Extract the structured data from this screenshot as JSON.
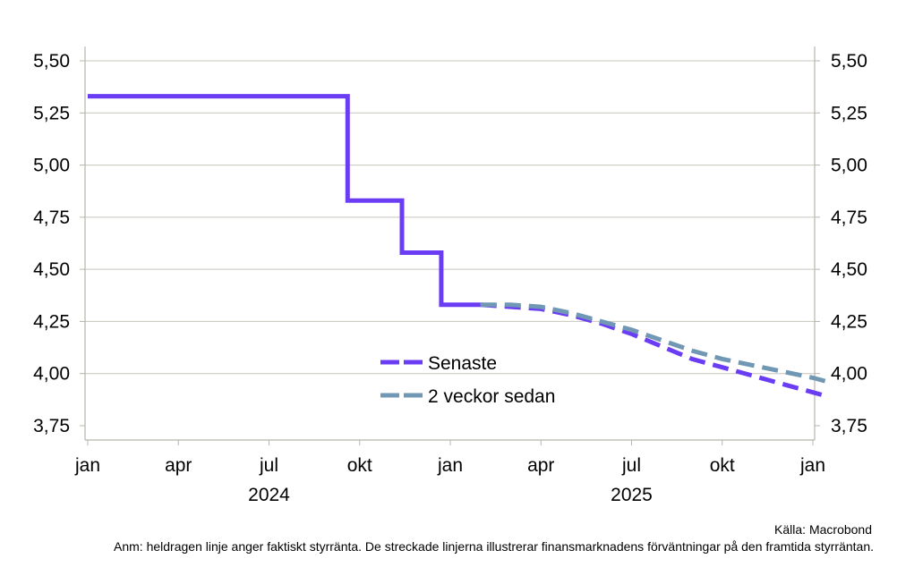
{
  "chart_data": {
    "type": "line",
    "y_ticks": [
      "5,50",
      "5,25",
      "5,00",
      "4,75",
      "4,50",
      "4,25",
      "4,00",
      "3,75"
    ],
    "y_values": [
      5.5,
      5.25,
      5.0,
      4.75,
      4.5,
      4.25,
      4.0,
      3.75
    ],
    "ylim": [
      3.75,
      5.5
    ],
    "x_ticks": [
      "jan",
      "apr",
      "jul",
      "okt",
      "jan",
      "apr",
      "jul",
      "okt",
      "jan"
    ],
    "x_tick_months": [
      0,
      3,
      6,
      9,
      12,
      15,
      18,
      21,
      24
    ],
    "xlim_months": [
      0,
      24
    ],
    "years": [
      "2024",
      "2025"
    ],
    "grid": true,
    "legend_position": "center-bottom",
    "series": [
      {
        "name": "Senaste",
        "color": "#6a3df5",
        "segments": [
          {
            "style": "solid",
            "points": [
              [
                0,
                5.33
              ],
              [
                8.6,
                5.33
              ],
              [
                8.6,
                4.83
              ],
              [
                10.4,
                4.83
              ],
              [
                10.4,
                4.58
              ],
              [
                11.7,
                4.58
              ],
              [
                11.7,
                4.33
              ],
              [
                13.0,
                4.33
              ]
            ]
          },
          {
            "style": "dashed",
            "points": [
              [
                13.0,
                4.33
              ],
              [
                14.0,
                4.32
              ],
              [
                15.0,
                4.31
              ],
              [
                16.0,
                4.28
              ],
              [
                17.0,
                4.24
              ],
              [
                18.0,
                4.19
              ],
              [
                19.0,
                4.13
              ],
              [
                20.0,
                4.07
              ],
              [
                21.0,
                4.03
              ],
              [
                22.0,
                3.99
              ],
              [
                23.0,
                3.95
              ],
              [
                24.0,
                3.91
              ],
              [
                24.5,
                3.89
              ]
            ]
          }
        ]
      },
      {
        "name": "2 veckor sedan",
        "color": "#7098b4",
        "segments": [
          {
            "style": "dashed",
            "points": [
              [
                13.0,
                4.33
              ],
              [
                14.0,
                4.33
              ],
              [
                15.0,
                4.32
              ],
              [
                16.0,
                4.29
              ],
              [
                17.0,
                4.25
              ],
              [
                18.0,
                4.21
              ],
              [
                19.0,
                4.16
              ],
              [
                20.0,
                4.11
              ],
              [
                21.0,
                4.07
              ],
              [
                22.0,
                4.04
              ],
              [
                23.0,
                4.01
              ],
              [
                24.0,
                3.98
              ],
              [
                24.5,
                3.96
              ]
            ]
          }
        ]
      }
    ]
  },
  "notes": {
    "source": "Källa: Macrobond",
    "anm": "Anm: heldragen linje anger faktiskt styrränta. De streckade linjerna illustrerar finansmarknadens förväntningar på den framtida styrräntan."
  }
}
